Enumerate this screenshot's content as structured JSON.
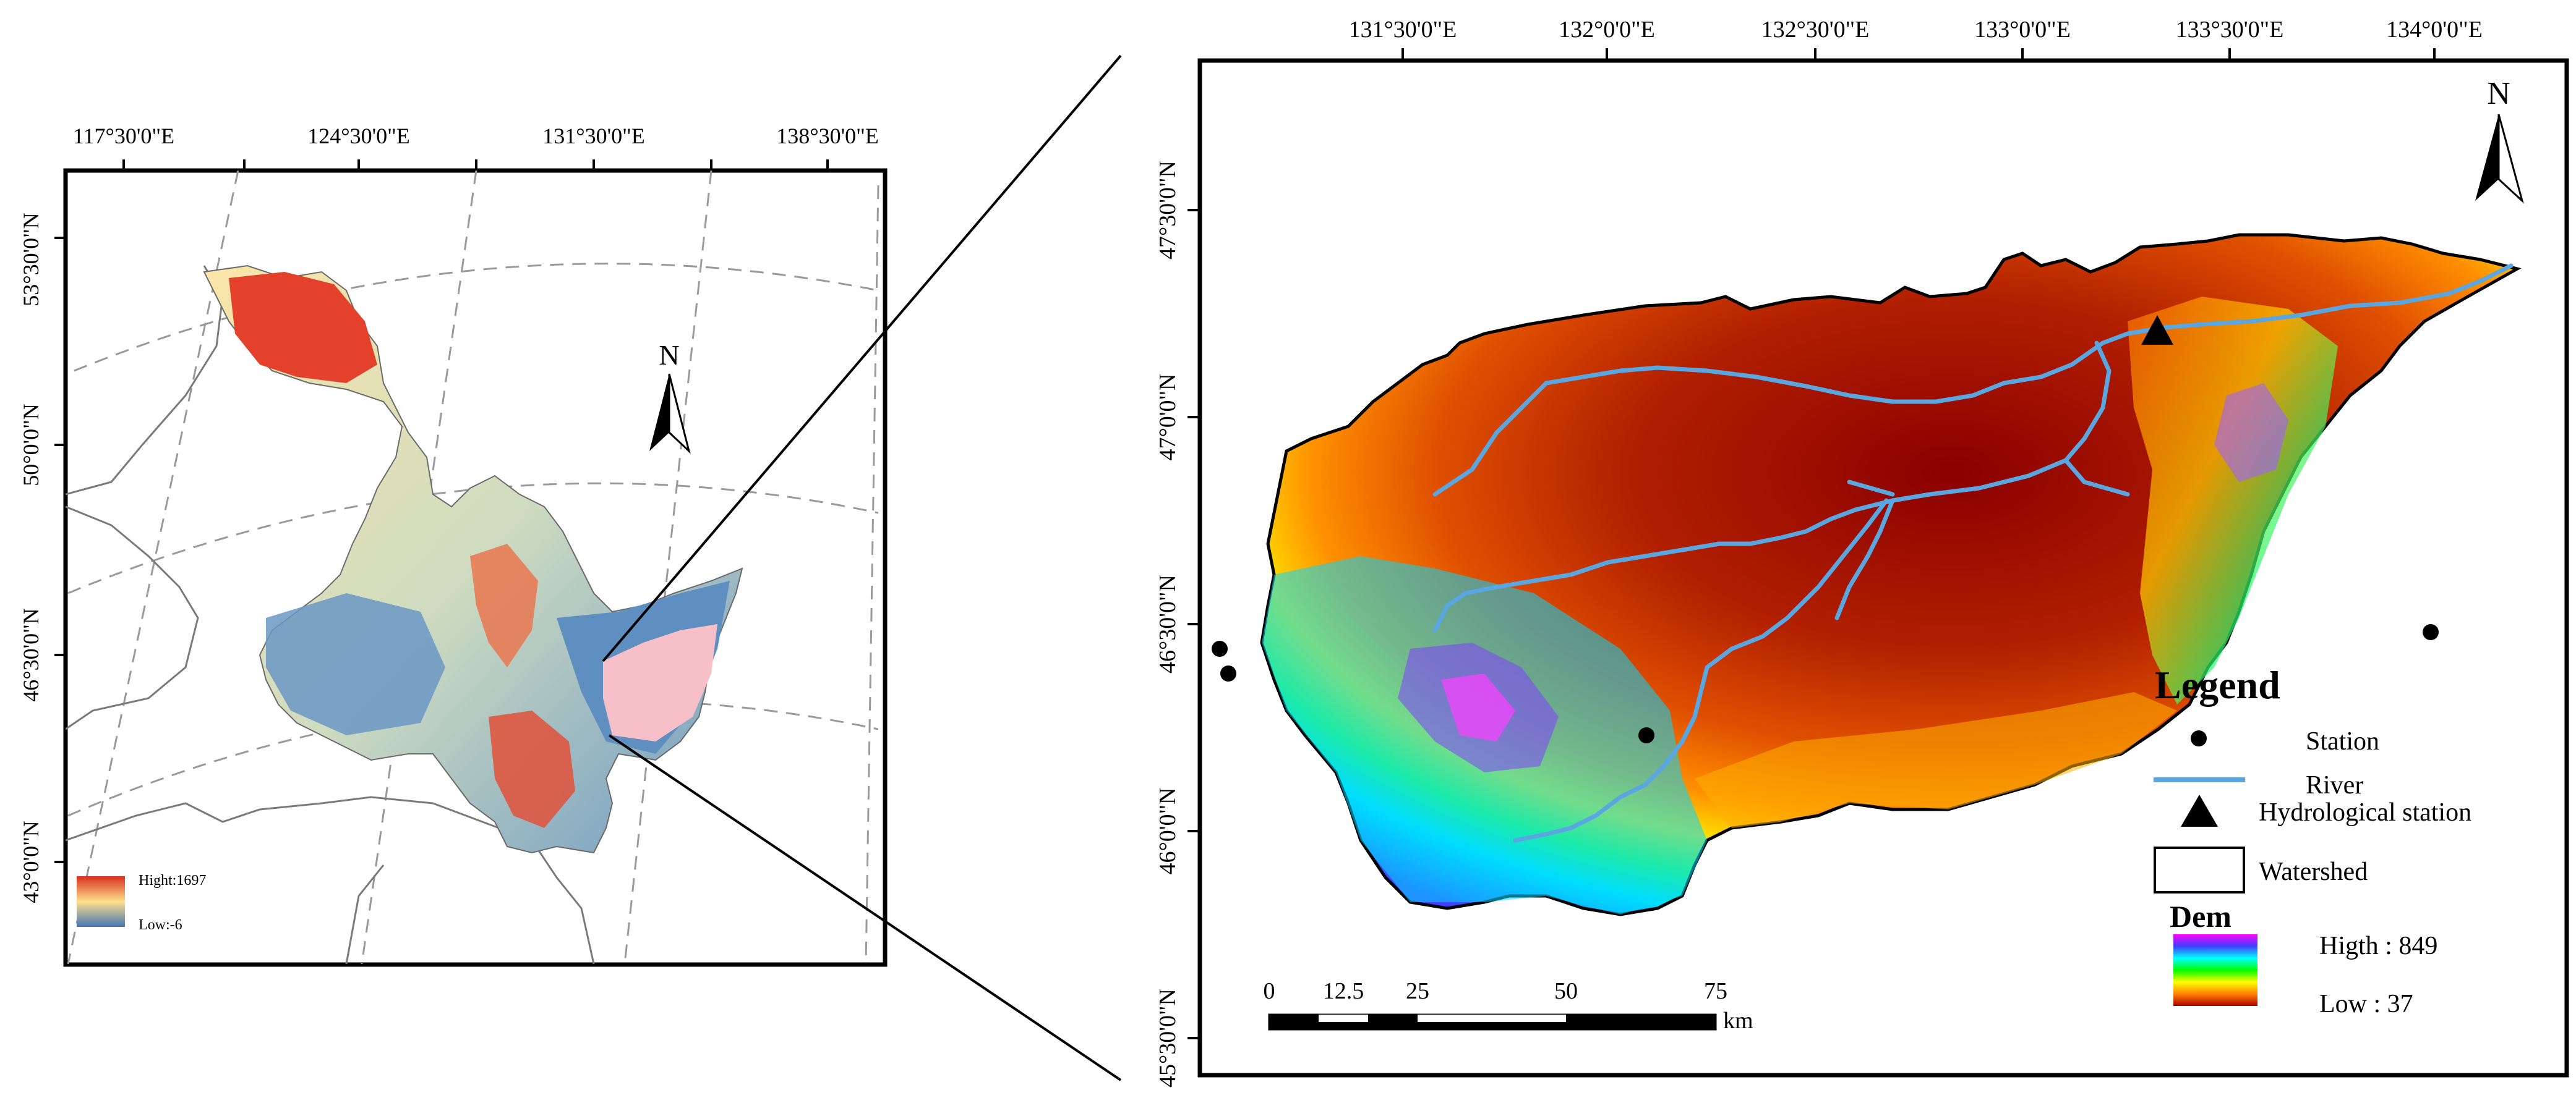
{
  "overview_map": {
    "lon_labels": [
      "117°30'0\"E",
      "124°30'0\"E",
      "131°30'0\"E",
      "138°30'0\"E"
    ],
    "lat_labels": [
      "53°30'0\"N",
      "50°0'0\"N",
      "46°30'0\"N",
      "43°0'0\"N"
    ],
    "north_label": "N",
    "legend": {
      "high_label": "Hight:1697",
      "low_label": "Low:-6",
      "colors": [
        "#d7301f",
        "#fee08b",
        "#4575b4"
      ]
    },
    "highlight_color": "#f7c0c8"
  },
  "detail_map": {
    "lon_labels": [
      "131°30'0\"E",
      "132°0'0\"E",
      "132°30'0\"E",
      "133°0'0\"E",
      "133°30'0\"E",
      "134°0'0\"E"
    ],
    "lat_labels": [
      "47°30'0\"N",
      "47°0'0\"N",
      "46°30'0\"N",
      "46°0'0\"N",
      "45°30'0\"N"
    ],
    "north_label": "N",
    "river_color": "#5aa6e0",
    "scale_bar": {
      "ticks": [
        "0",
        "12.5",
        "25",
        "50",
        "75"
      ],
      "unit": "km"
    },
    "legend": {
      "title": "Legend",
      "items": [
        {
          "label": "Station",
          "icon": "dot-icon"
        },
        {
          "label": "River",
          "icon": "line-icon"
        },
        {
          "label": "Hydrological station",
          "icon": "triangle-icon"
        },
        {
          "label": "Watershed",
          "icon": "rectangle-icon"
        }
      ],
      "dem_title": "Dem",
      "dem_high_label": "Higth : 849",
      "dem_low_label": "Low : 37",
      "dem_colors": [
        "#ff00ff",
        "#4040ff",
        "#00ffff",
        "#00ff00",
        "#ffff00",
        "#ff8000",
        "#b00000"
      ]
    }
  }
}
